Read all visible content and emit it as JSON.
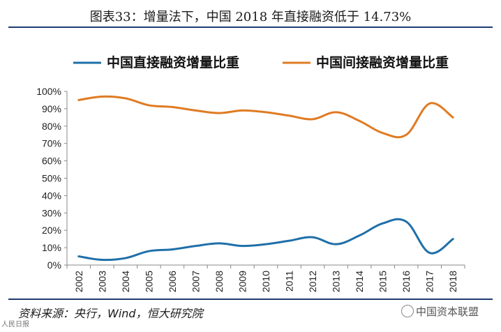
{
  "header": {
    "title": "图表33：增量法下，中国 2018 年直接融资低于 14.73%"
  },
  "footer": {
    "source": "资料来源：央行，Wind，恒大研究院",
    "watermark": "中国资本联盟",
    "corner_mark": "人民日报"
  },
  "colors": {
    "direct": "#1F6FA8",
    "indirect": "#E07B22",
    "rule": "#1F3B73"
  },
  "chart_data": {
    "type": "line",
    "title": "",
    "xlabel": "",
    "ylabel": "",
    "ylim": [
      0,
      100
    ],
    "yticks": [
      "0%",
      "10%",
      "20%",
      "30%",
      "40%",
      "50%",
      "60%",
      "70%",
      "80%",
      "90%",
      "100%"
    ],
    "categories": [
      "2002",
      "2003",
      "2004",
      "2005",
      "2006",
      "2007",
      "2008",
      "2009",
      "2010",
      "2011",
      "2012",
      "2013",
      "2014",
      "2015",
      "2016",
      "2017",
      "2018"
    ],
    "series": [
      {
        "name": "中国直接融资增量比重",
        "color": "#1F6FA8",
        "values": [
          5,
          3,
          4,
          8,
          9,
          11,
          12.5,
          11,
          12,
          14,
          16,
          12,
          17,
          24,
          25,
          7,
          15
        ]
      },
      {
        "name": "中国间接融资增量比重",
        "color": "#E07B22",
        "values": [
          95,
          97,
          96,
          92,
          91,
          89,
          87.5,
          89,
          88,
          86,
          84,
          88,
          83,
          76,
          75,
          93,
          85
        ]
      }
    ],
    "legend_position": "top"
  }
}
